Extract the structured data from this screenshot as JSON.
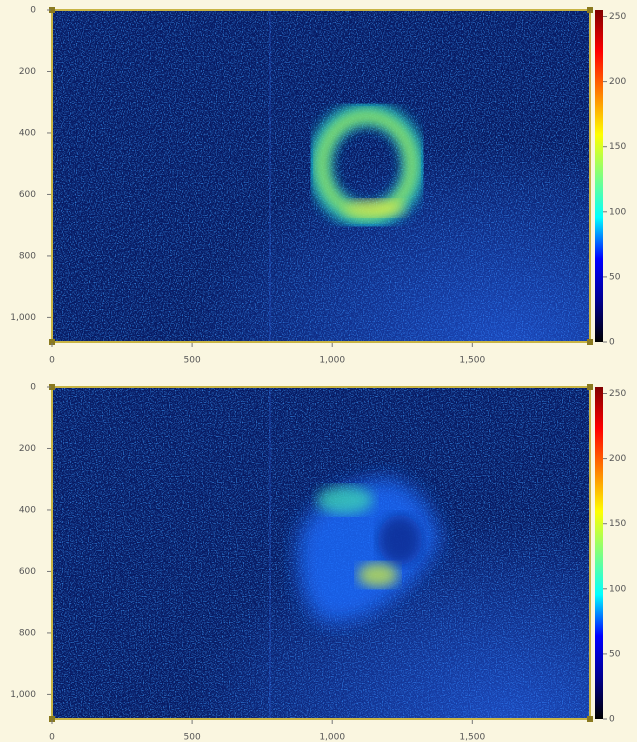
{
  "chart_data": [
    {
      "type": "heatmap",
      "xlim": [
        0,
        1920
      ],
      "xticks": [
        0,
        500,
        {
          "value": 1000,
          "label": "1,000"
        },
        {
          "value": 1500,
          "label": "1,500"
        }
      ],
      "ylim": [
        0,
        1080
      ],
      "y_inverted": true,
      "yticks": [
        0,
        200,
        400,
        600,
        800,
        {
          "value": 1000,
          "label": "1,000"
        }
      ],
      "colorbar": {
        "lim": [
          0,
          255
        ],
        "ticks": [
          0,
          50,
          100,
          150,
          200,
          250
        ]
      },
      "colormap": [
        "#000000",
        "#00008f",
        "#0000ff",
        "#00ffff",
        "#7fff7f",
        "#ffff00",
        "#ff7f00",
        "#ff0000",
        "#800000"
      ]
    },
    {
      "type": "heatmap",
      "xlim": [
        0,
        1920
      ],
      "xticks": [
        0,
        500,
        {
          "value": 1000,
          "label": "1,000"
        },
        {
          "value": 1500,
          "label": "1,500"
        }
      ],
      "ylim": [
        0,
        1080
      ],
      "y_inverted": true,
      "yticks": [
        0,
        200,
        400,
        600,
        800,
        {
          "value": 1000,
          "label": "1,000"
        }
      ],
      "colorbar": {
        "lim": [
          0,
          255
        ],
        "ticks": [
          0,
          50,
          100,
          150,
          200,
          250
        ]
      },
      "colormap": [
        "#000000",
        "#00008f",
        "#0000ff",
        "#00ffff",
        "#7fff7f",
        "#ffff00",
        "#ff7f00",
        "#ff0000",
        "#800000"
      ]
    }
  ]
}
